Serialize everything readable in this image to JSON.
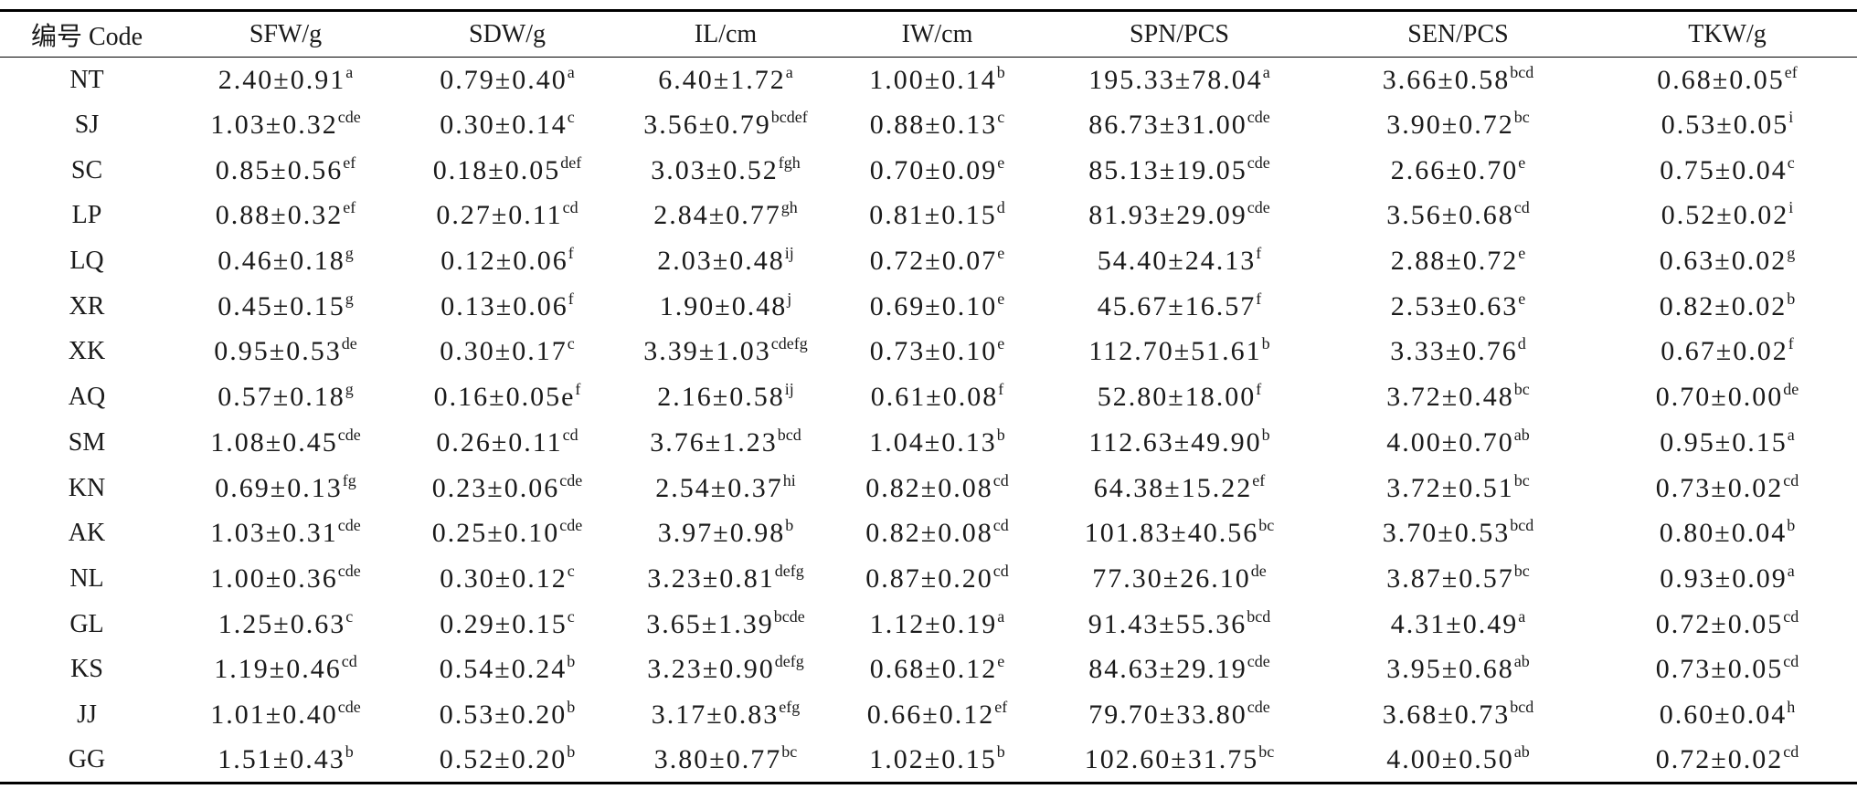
{
  "headers": [
    "编号 Code",
    "SFW/g",
    "SDW/g",
    "IL/cm",
    "IW/cm",
    "SPN/PCS",
    "SEN/PCS",
    "TKW/g"
  ],
  "rows": [
    {
      "code": "NT",
      "cells": [
        [
          "2.40±0.91",
          "a"
        ],
        [
          "0.79±0.40",
          "a"
        ],
        [
          "6.40±1.72",
          "a"
        ],
        [
          "1.00±0.14",
          "b"
        ],
        [
          "195.33±78.04",
          "a"
        ],
        [
          "3.66±0.58",
          "bcd"
        ],
        [
          "0.68±0.05",
          "ef"
        ]
      ]
    },
    {
      "code": "SJ",
      "cells": [
        [
          "1.03±0.32",
          "cde"
        ],
        [
          "0.30±0.14",
          "c"
        ],
        [
          "3.56±0.79",
          "bcdef"
        ],
        [
          "0.88±0.13",
          "c"
        ],
        [
          "86.73±31.00",
          "cde"
        ],
        [
          "3.90±0.72",
          "bc"
        ],
        [
          "0.53±0.05",
          "i"
        ]
      ]
    },
    {
      "code": "SC",
      "cells": [
        [
          "0.85±0.56",
          "ef"
        ],
        [
          "0.18±0.05",
          "def"
        ],
        [
          "3.03±0.52",
          "fgh"
        ],
        [
          "0.70±0.09",
          "e"
        ],
        [
          "85.13±19.05",
          "cde"
        ],
        [
          "2.66±0.70",
          "e"
        ],
        [
          "0.75±0.04",
          "c"
        ]
      ]
    },
    {
      "code": "LP",
      "cells": [
        [
          "0.88±0.32",
          "ef"
        ],
        [
          "0.27±0.11",
          "cd"
        ],
        [
          "2.84±0.77",
          "gh"
        ],
        [
          "0.81±0.15",
          "d"
        ],
        [
          "81.93±29.09",
          "cde"
        ],
        [
          "3.56±0.68",
          "cd"
        ],
        [
          "0.52±0.02",
          "i"
        ]
      ]
    },
    {
      "code": "LQ",
      "cells": [
        [
          "0.46±0.18",
          "g"
        ],
        [
          "0.12±0.06",
          "f"
        ],
        [
          "2.03±0.48",
          "ij"
        ],
        [
          "0.72±0.07",
          "e"
        ],
        [
          "54.40±24.13",
          "f"
        ],
        [
          "2.88±0.72",
          "e"
        ],
        [
          "0.63±0.02",
          "g"
        ]
      ]
    },
    {
      "code": "XR",
      "cells": [
        [
          "0.45±0.15",
          "g"
        ],
        [
          "0.13±0.06",
          "f"
        ],
        [
          "1.90±0.48",
          "j"
        ],
        [
          "0.69±0.10",
          "e"
        ],
        [
          "45.67±16.57",
          "f"
        ],
        [
          "2.53±0.63",
          "e"
        ],
        [
          "0.82±0.02",
          "b"
        ]
      ]
    },
    {
      "code": "XK",
      "cells": [
        [
          "0.95±0.53",
          "de"
        ],
        [
          "0.30±0.17",
          "c"
        ],
        [
          "3.39±1.03",
          "cdefg"
        ],
        [
          "0.73±0.10",
          "e"
        ],
        [
          "112.70±51.61",
          "b"
        ],
        [
          "3.33±0.76",
          "d"
        ],
        [
          "0.67±0.02",
          "f"
        ]
      ]
    },
    {
      "code": "AQ",
      "cells": [
        [
          "0.57±0.18",
          "g"
        ],
        [
          "0.16±0.05e",
          "f"
        ],
        [
          "2.16±0.58",
          "ij"
        ],
        [
          "0.61±0.08",
          "f"
        ],
        [
          "52.80±18.00",
          "f"
        ],
        [
          "3.72±0.48",
          "bc"
        ],
        [
          "0.70±0.00",
          "de"
        ]
      ]
    },
    {
      "code": "SM",
      "cells": [
        [
          "1.08±0.45",
          "cde"
        ],
        [
          "0.26±0.11",
          "cd"
        ],
        [
          "3.76±1.23",
          "bcd"
        ],
        [
          "1.04±0.13",
          "b"
        ],
        [
          "112.63±49.90",
          "b"
        ],
        [
          "4.00±0.70",
          "ab"
        ],
        [
          "0.95±0.15",
          "a"
        ]
      ]
    },
    {
      "code": "KN",
      "cells": [
        [
          "0.69±0.13",
          "fg"
        ],
        [
          "0.23±0.06",
          "cde"
        ],
        [
          "2.54±0.37",
          "hi"
        ],
        [
          "0.82±0.08",
          "cd"
        ],
        [
          "64.38±15.22",
          "ef"
        ],
        [
          "3.72±0.51",
          "bc"
        ],
        [
          "0.73±0.02",
          "cd"
        ]
      ]
    },
    {
      "code": "AK",
      "cells": [
        [
          "1.03±0.31",
          "cde"
        ],
        [
          "0.25±0.10",
          "cde"
        ],
        [
          "3.97±0.98",
          "b"
        ],
        [
          "0.82±0.08",
          "cd"
        ],
        [
          "101.83±40.56",
          "bc"
        ],
        [
          "3.70±0.53",
          "bcd"
        ],
        [
          "0.80±0.04",
          "b"
        ]
      ]
    },
    {
      "code": "NL",
      "cells": [
        [
          "1.00±0.36",
          "cde"
        ],
        [
          "0.30±0.12",
          "c"
        ],
        [
          "3.23±0.81",
          "defg"
        ],
        [
          "0.87±0.20",
          "cd"
        ],
        [
          "77.30±26.10",
          "de"
        ],
        [
          "3.87±0.57",
          "bc"
        ],
        [
          "0.93±0.09",
          "a"
        ]
      ]
    },
    {
      "code": "GL",
      "cells": [
        [
          "1.25±0.63",
          "c"
        ],
        [
          "0.29±0.15",
          "c"
        ],
        [
          "3.65±1.39",
          "bcde"
        ],
        [
          "1.12±0.19",
          "a"
        ],
        [
          "91.43±55.36",
          "bcd"
        ],
        [
          "4.31±0.49",
          "a"
        ],
        [
          "0.72±0.05",
          "cd"
        ]
      ]
    },
    {
      "code": "KS",
      "cells": [
        [
          "1.19±0.46",
          "cd"
        ],
        [
          "0.54±0.24",
          "b"
        ],
        [
          "3.23±0.90",
          "defg"
        ],
        [
          "0.68±0.12",
          "e"
        ],
        [
          "84.63±29.19",
          "cde"
        ],
        [
          "3.95±0.68",
          "ab"
        ],
        [
          "0.73±0.05",
          "cd"
        ]
      ]
    },
    {
      "code": "JJ",
      "cells": [
        [
          "1.01±0.40",
          "cde"
        ],
        [
          "0.53±0.20",
          "b"
        ],
        [
          "3.17±0.83",
          "efg"
        ],
        [
          "0.66±0.12",
          "ef"
        ],
        [
          "79.70±33.80",
          "cde"
        ],
        [
          "3.68±0.73",
          "bcd"
        ],
        [
          "0.60±0.04",
          "h"
        ]
      ]
    },
    {
      "code": "GG",
      "cells": [
        [
          "1.51±0.43",
          "b"
        ],
        [
          "0.52±0.20",
          "b"
        ],
        [
          "3.80±0.77",
          "bc"
        ],
        [
          "1.02±0.15",
          "b"
        ],
        [
          "102.60±31.75",
          "bc"
        ],
        [
          "4.00±0.50",
          "ab"
        ],
        [
          "0.72±0.02",
          "cd"
        ]
      ]
    }
  ]
}
